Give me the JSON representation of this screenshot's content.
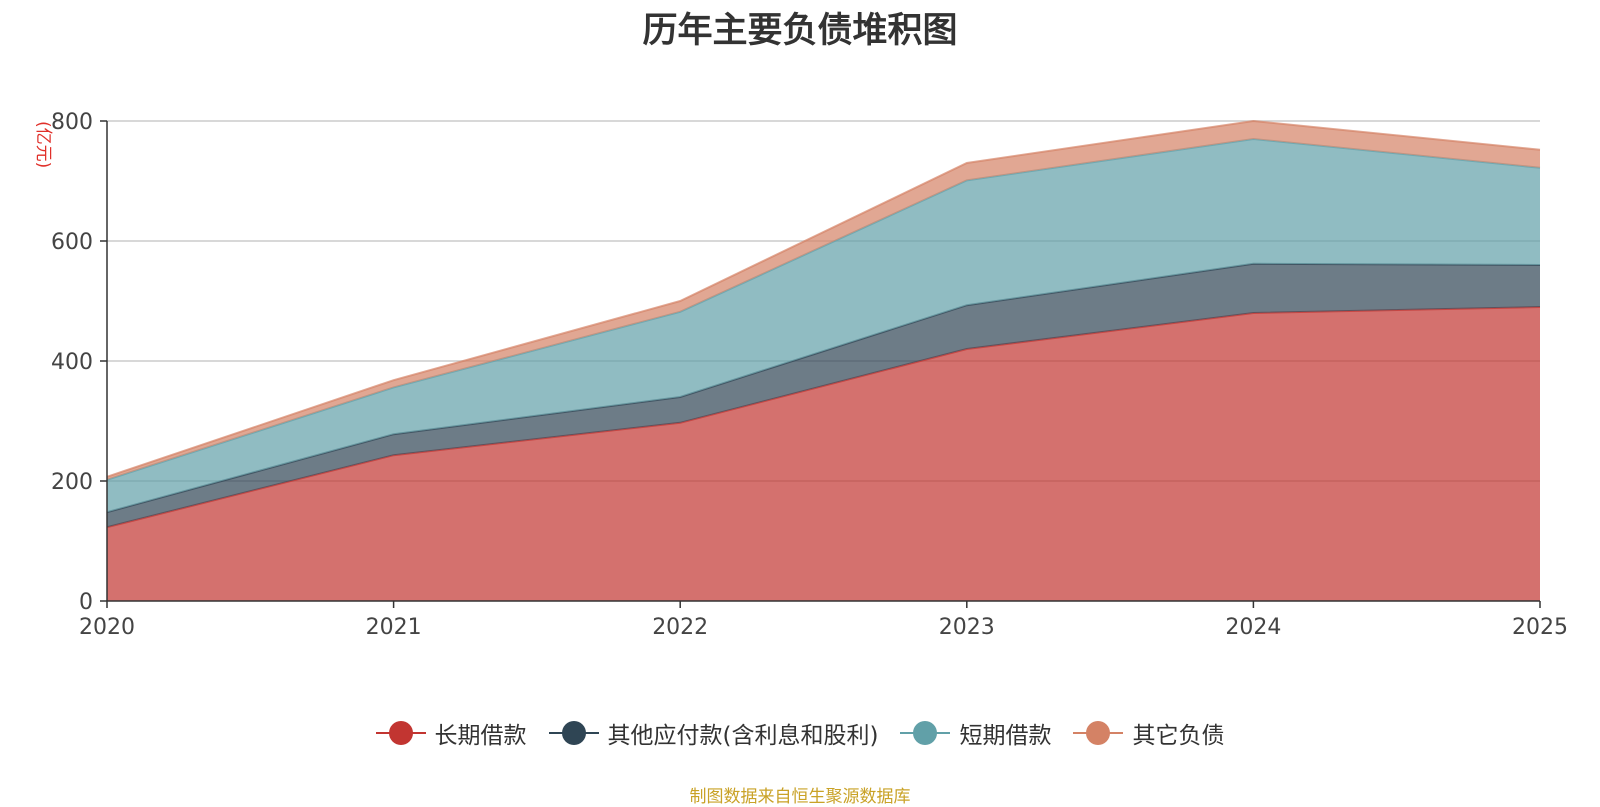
{
  "chart_data": {
    "type": "area",
    "stacked": true,
    "title": "历年主要负债堆积图",
    "ylabel": "(亿元)",
    "xlabel": "",
    "x": [
      "2020",
      "2021",
      "2022",
      "2023",
      "2024",
      "2025"
    ],
    "ylim": [
      0,
      800
    ],
    "yticks": [
      0,
      200,
      400,
      600,
      800
    ],
    "grid": true,
    "legend_position": "bottom",
    "series": [
      {
        "name": "长期借款",
        "color": "#c23531",
        "values": [
          123,
          243,
          297,
          420,
          480,
          490
        ]
      },
      {
        "name": "其他应付款(含利息和股利)",
        "color": "#2f4554",
        "values": [
          25,
          35,
          43,
          73,
          82,
          70
        ]
      },
      {
        "name": "短期借款",
        "color": "#61a0a8",
        "values": [
          54,
          78,
          142,
          208,
          208,
          162
        ]
      },
      {
        "name": "其它负债",
        "color": "#d48265",
        "values": [
          5,
          12,
          18,
          29,
          30,
          30
        ]
      }
    ]
  },
  "source_note": "制图数据来自恒生聚源数据库"
}
